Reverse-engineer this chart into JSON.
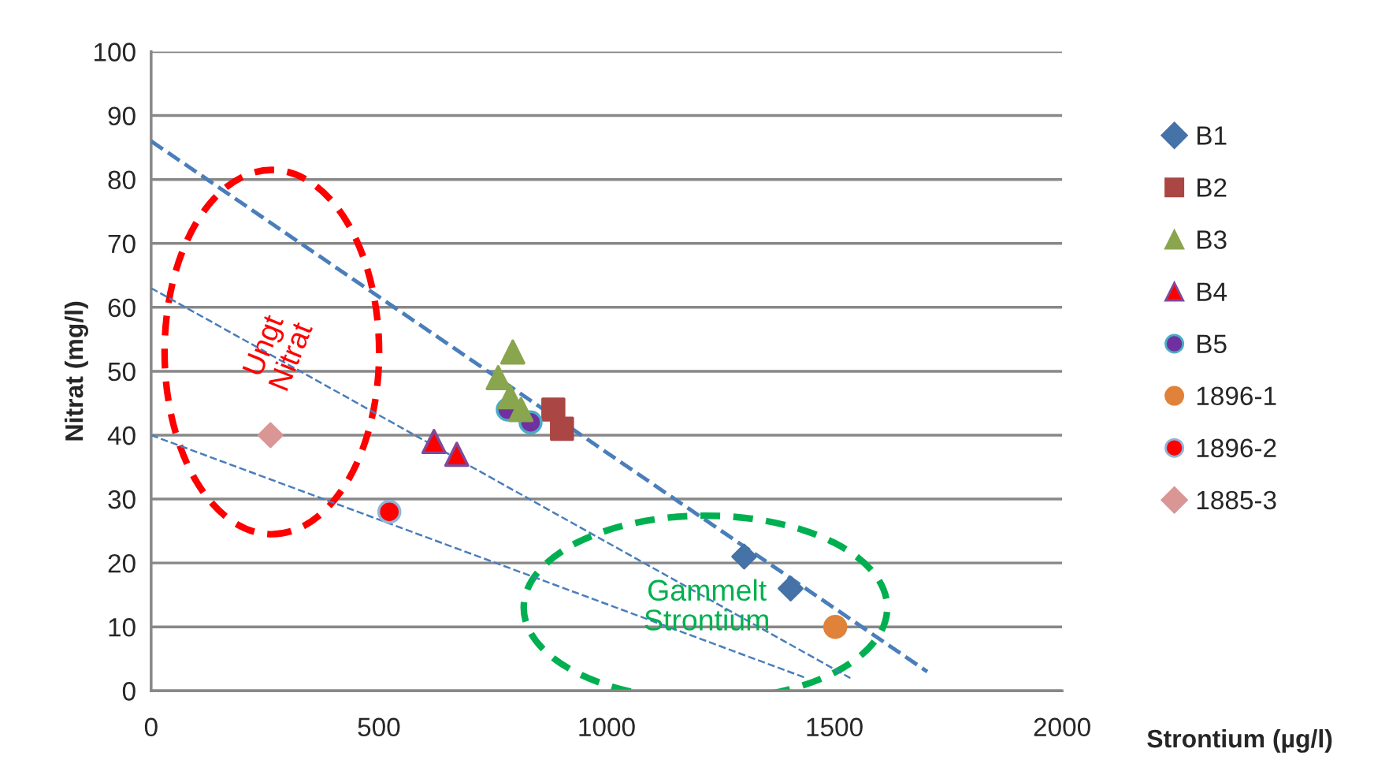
{
  "chart_data": {
    "type": "scatter",
    "xlabel": "Strontium (µg/l)",
    "ylabel": "Nitrat (mg/l)",
    "xlim": [
      0,
      2000
    ],
    "xticks": [
      0,
      500,
      1000,
      1500,
      2000
    ],
    "ylim": [
      0,
      100
    ],
    "yticks": [
      0,
      10,
      20,
      30,
      40,
      50,
      60,
      70,
      80,
      90,
      100
    ],
    "grid": "y",
    "legend": "right",
    "annotations": [
      "Ungt Nitrat",
      "Gammelt Strontium"
    ],
    "series": [
      {
        "name": "B1",
        "color": "#4572a7",
        "marker": "diamond",
        "x": [
          1302,
          1404
        ],
        "values": [
          21,
          16
        ]
      },
      {
        "name": "B2",
        "color": "#aa4643",
        "marker": "square",
        "x": [
          883,
          902
        ],
        "values": [
          44,
          41
        ]
      },
      {
        "name": "B3",
        "color": "#89a54e",
        "marker": "triangle",
        "x": [
          794,
          762,
          788,
          812
        ],
        "values": [
          53,
          49,
          46,
          44
        ]
      },
      {
        "name": "B4",
        "color": "#ff0000",
        "marker": "triangle",
        "x": [
          621,
          671
        ],
        "values": [
          39,
          37
        ]
      },
      {
        "name": "B5",
        "color": "#7030a0",
        "marker": "circle",
        "x": [
          783,
          833
        ],
        "values": [
          44,
          42
        ]
      },
      {
        "name": "1896-1",
        "color": "#e0823a",
        "marker": "circle",
        "x": [
          1502
        ],
        "values": [
          10
        ]
      },
      {
        "name": "1896-2",
        "color": "#ff0000",
        "marker": "circle",
        "x": [
          523
        ],
        "values": [
          28
        ]
      },
      {
        "name": "1885-3",
        "color": "#d99694",
        "marker": "diamond",
        "x": [
          262
        ],
        "values": [
          40
        ]
      },
      {
        "type": "line",
        "color": "#4a7ebb",
        "line_style": "dashed",
        "x": [
          0,
          1704
        ],
        "values": [
          86,
          3
        ]
      },
      {
        "type": "line",
        "color": "#4a7ebb",
        "line_style": "dashed",
        "x": [
          0,
          1535
        ],
        "values": [
          63,
          2
        ]
      },
      {
        "type": "line",
        "color": "#4a7ebb",
        "line_style": "dashed",
        "x": [
          0,
          1438
        ],
        "values": [
          40,
          2
        ]
      }
    ]
  }
}
